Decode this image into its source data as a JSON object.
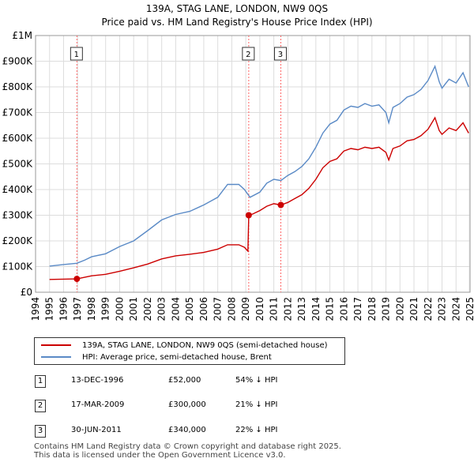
{
  "title": "139A, STAG LANE, LONDON, NW9 0QS",
  "subtitle": "Price paid vs. HM Land Registry's House Price Index (HPI)",
  "colors": {
    "property": "#cc0000",
    "hpi": "#5a8ac6",
    "sale_line": "#ff6666",
    "grid": "#dddddd"
  },
  "chart_data": {
    "type": "line",
    "x_range": [
      1994,
      2025
    ],
    "ylim": [
      0,
      1000000
    ],
    "y_ticks": [
      {
        "value": 0,
        "label": "£0"
      },
      {
        "value": 100000,
        "label": "£100K"
      },
      {
        "value": 200000,
        "label": "£200K"
      },
      {
        "value": 300000,
        "label": "£300K"
      },
      {
        "value": 400000,
        "label": "£400K"
      },
      {
        "value": 500000,
        "label": "£500K"
      },
      {
        "value": 600000,
        "label": "£600K"
      },
      {
        "value": 700000,
        "label": "£700K"
      },
      {
        "value": 800000,
        "label": "£800K"
      },
      {
        "value": 900000,
        "label": "£900K"
      },
      {
        "value": 1000000,
        "label": "£1M"
      }
    ],
    "x_ticks": [
      "1994",
      "1995",
      "1996",
      "1997",
      "1998",
      "1999",
      "2000",
      "2001",
      "2002",
      "2003",
      "2004",
      "2005",
      "2006",
      "2007",
      "2008",
      "2009",
      "2010",
      "2011",
      "2012",
      "2013",
      "2014",
      "2015",
      "2016",
      "2017",
      "2018",
      "2019",
      "2020",
      "2021",
      "2022",
      "2023",
      "2024",
      "2025"
    ],
    "series": [
      {
        "name": "139A, STAG LANE, LONDON, NW9 0QS (semi-detached house)",
        "color": "#cc0000",
        "points": [
          [
            1995.0,
            50000
          ],
          [
            1996.0,
            51000
          ],
          [
            1996.95,
            52000
          ],
          [
            1997.5,
            58000
          ],
          [
            1998.0,
            64000
          ],
          [
            1999.0,
            70000
          ],
          [
            2000.0,
            82000
          ],
          [
            2001.0,
            95000
          ],
          [
            2002.0,
            110000
          ],
          [
            2003.0,
            130000
          ],
          [
            2004.0,
            142000
          ],
          [
            2005.0,
            148000
          ],
          [
            2006.0,
            155000
          ],
          [
            2007.0,
            168000
          ],
          [
            2007.7,
            185000
          ],
          [
            2008.5,
            185000
          ],
          [
            2008.9,
            175000
          ],
          [
            2009.15,
            160000
          ],
          [
            2009.21,
            300000
          ],
          [
            2009.5,
            305000
          ],
          [
            2010.0,
            318000
          ],
          [
            2010.5,
            335000
          ],
          [
            2011.0,
            345000
          ],
          [
            2011.5,
            340000
          ],
          [
            2012.0,
            350000
          ],
          [
            2012.5,
            365000
          ],
          [
            2013.0,
            380000
          ],
          [
            2013.5,
            405000
          ],
          [
            2014.0,
            440000
          ],
          [
            2014.5,
            485000
          ],
          [
            2015.0,
            510000
          ],
          [
            2015.5,
            520000
          ],
          [
            2016.0,
            550000
          ],
          [
            2016.5,
            560000
          ],
          [
            2017.0,
            555000
          ],
          [
            2017.5,
            565000
          ],
          [
            2018.0,
            560000
          ],
          [
            2018.5,
            565000
          ],
          [
            2019.0,
            545000
          ],
          [
            2019.2,
            515000
          ],
          [
            2019.5,
            560000
          ],
          [
            2020.0,
            570000
          ],
          [
            2020.5,
            590000
          ],
          [
            2021.0,
            595000
          ],
          [
            2021.5,
            610000
          ],
          [
            2022.0,
            635000
          ],
          [
            2022.5,
            680000
          ],
          [
            2022.8,
            630000
          ],
          [
            2023.0,
            615000
          ],
          [
            2023.5,
            640000
          ],
          [
            2024.0,
            630000
          ],
          [
            2024.5,
            660000
          ],
          [
            2024.9,
            620000
          ]
        ]
      },
      {
        "name": "HPI: Average price, semi-detached house, Brent",
        "color": "#5a8ac6",
        "points": [
          [
            1995.0,
            102000
          ],
          [
            1996.0,
            108000
          ],
          [
            1996.95,
            113000
          ],
          [
            1997.5,
            125000
          ],
          [
            1998.0,
            138000
          ],
          [
            1999.0,
            150000
          ],
          [
            2000.0,
            178000
          ],
          [
            2001.0,
            200000
          ],
          [
            2002.0,
            240000
          ],
          [
            2003.0,
            282000
          ],
          [
            2004.0,
            303000
          ],
          [
            2005.0,
            315000
          ],
          [
            2006.0,
            340000
          ],
          [
            2007.0,
            370000
          ],
          [
            2007.7,
            420000
          ],
          [
            2008.5,
            420000
          ],
          [
            2008.9,
            400000
          ],
          [
            2009.3,
            370000
          ],
          [
            2010.0,
            390000
          ],
          [
            2010.5,
            425000
          ],
          [
            2011.0,
            440000
          ],
          [
            2011.5,
            435000
          ],
          [
            2012.0,
            455000
          ],
          [
            2012.5,
            470000
          ],
          [
            2013.0,
            490000
          ],
          [
            2013.5,
            520000
          ],
          [
            2014.0,
            565000
          ],
          [
            2014.5,
            620000
          ],
          [
            2015.0,
            655000
          ],
          [
            2015.5,
            670000
          ],
          [
            2016.0,
            710000
          ],
          [
            2016.5,
            725000
          ],
          [
            2017.0,
            720000
          ],
          [
            2017.5,
            735000
          ],
          [
            2018.0,
            725000
          ],
          [
            2018.5,
            730000
          ],
          [
            2019.0,
            700000
          ],
          [
            2019.2,
            660000
          ],
          [
            2019.5,
            720000
          ],
          [
            2020.0,
            735000
          ],
          [
            2020.5,
            760000
          ],
          [
            2021.0,
            770000
          ],
          [
            2021.5,
            790000
          ],
          [
            2022.0,
            825000
          ],
          [
            2022.5,
            880000
          ],
          [
            2022.8,
            820000
          ],
          [
            2023.0,
            795000
          ],
          [
            2023.5,
            830000
          ],
          [
            2024.0,
            815000
          ],
          [
            2024.5,
            855000
          ],
          [
            2024.9,
            800000
          ]
        ]
      }
    ],
    "sales": [
      {
        "marker": "1",
        "x": 1996.95,
        "price": 52000
      },
      {
        "marker": "2",
        "x": 2009.21,
        "price": 300000
      },
      {
        "marker": "3",
        "x": 2011.5,
        "price": 340000
      }
    ]
  },
  "legend": {
    "property": "139A, STAG LANE, LONDON, NW9 0QS (semi-detached house)",
    "hpi": "HPI: Average price, semi-detached house, Brent"
  },
  "transactions": [
    {
      "marker": "1",
      "date": "13-DEC-1996",
      "price": "£52,000",
      "hpi_diff": "54% ↓ HPI"
    },
    {
      "marker": "2",
      "date": "17-MAR-2009",
      "price": "£300,000",
      "hpi_diff": "21% ↓ HPI"
    },
    {
      "marker": "3",
      "date": "30-JUN-2011",
      "price": "£340,000",
      "hpi_diff": "22% ↓ HPI"
    }
  ],
  "footer": {
    "line1": "Contains HM Land Registry data © Crown copyright and database right 2025.",
    "line2": "This data is licensed under the Open Government Licence v3.0."
  }
}
